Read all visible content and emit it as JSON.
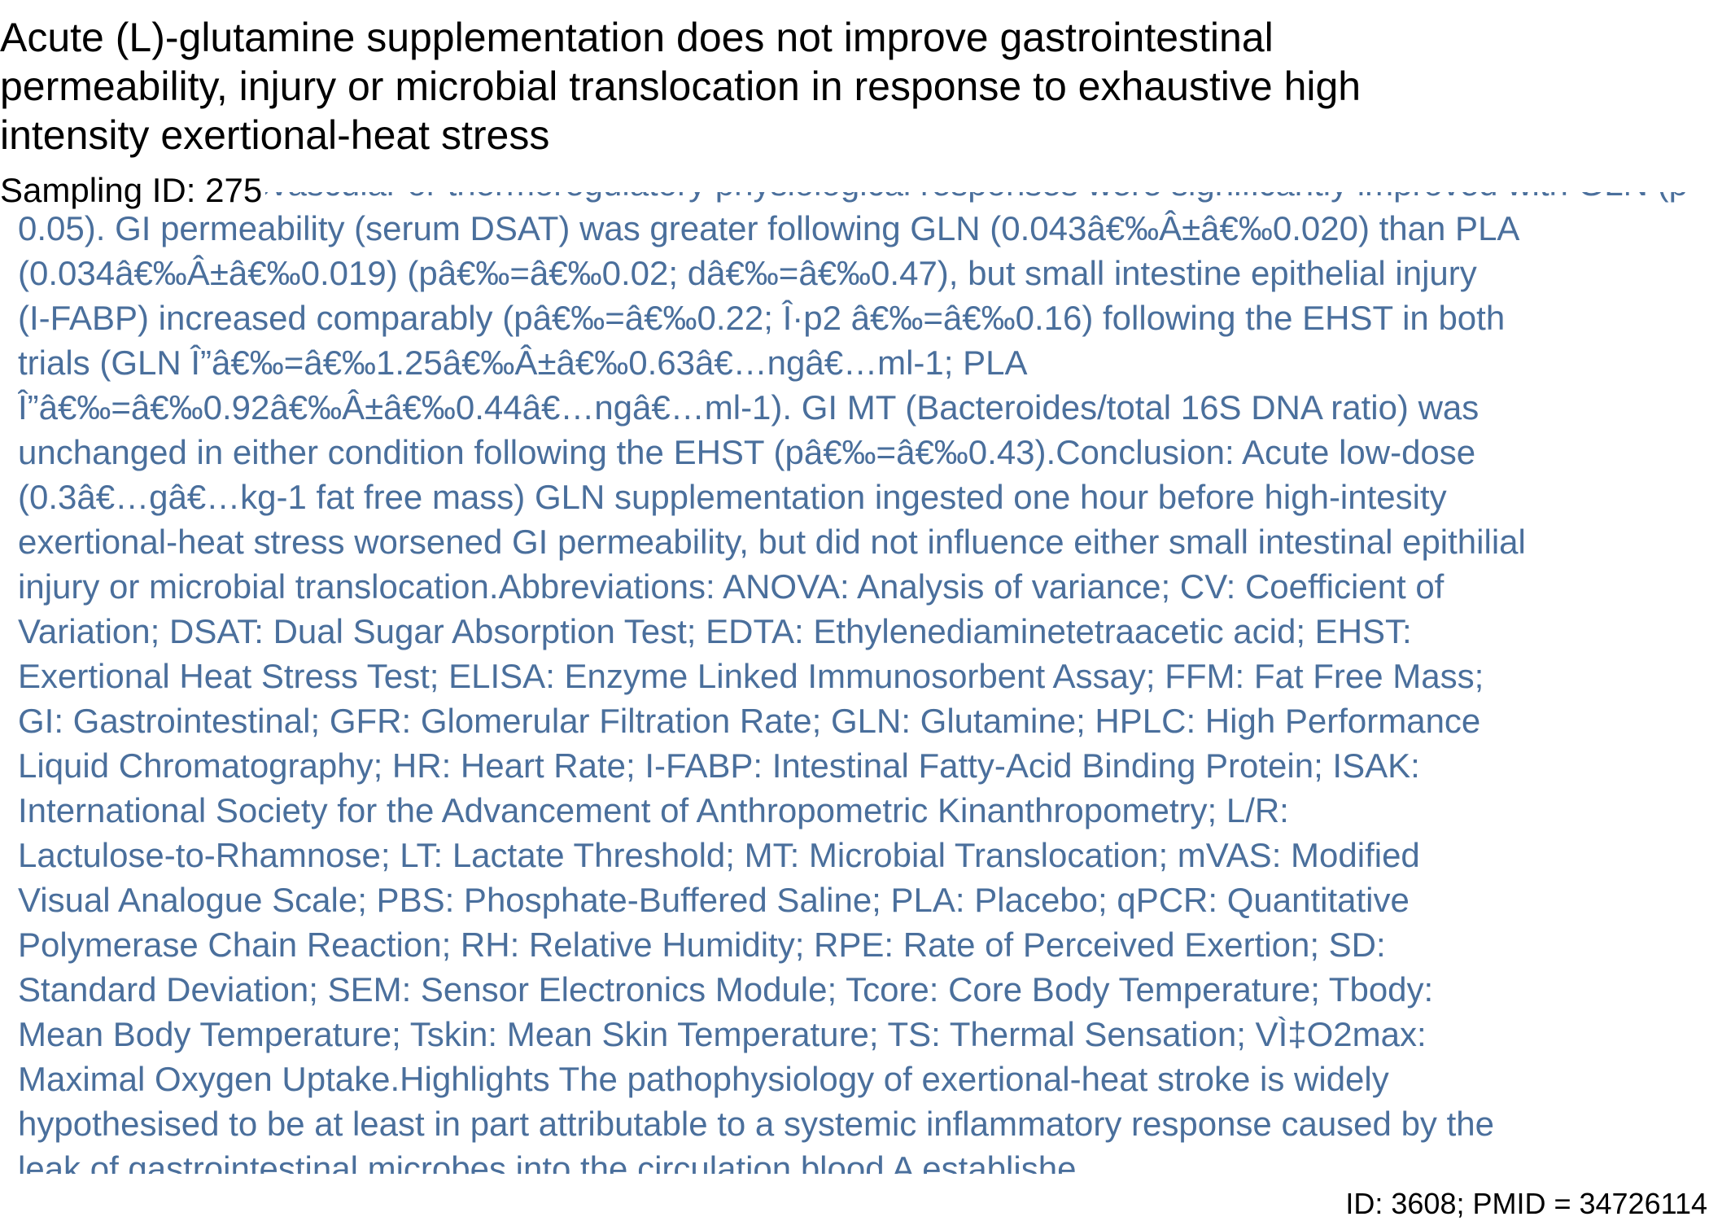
{
  "title_lines": [
    "Acute (L)-glutamine supplementation does not improve gastrointestinal",
    "permeability, injury or microbial translocation in response to exhaustive high",
    "intensity exertional-heat stress"
  ],
  "sampling_id": "Sampling ID: 275",
  "abstract_lines": [
    "hydration, cardiovascular or thermoregulatory physiological responses were significantly improved with GLN (p",
    "0.05). GI permeability (serum DSAT) was greater following GLN (0.043â€‰Â±â€‰0.020) than PLA",
    "(0.034â€‰Â±â€‰0.019) (pâ€‰=â€‰0.02; dâ€‰=â€‰0.47), but small intestine epithelial injury",
    "(I-FABP) increased comparably (pâ€‰=â€‰0.22; Î·p2 â€‰=â€‰0.16) following the EHST in both",
    "trials (GLN Î”â€‰=â€‰1.25â€‰Â±â€‰0.63â€…ngâ€…ml-1; PLA",
    "Î”â€‰=â€‰0.92â€‰Â±â€‰0.44â€…ngâ€…ml-1). GI MT (Bacteroides/total 16S DNA ratio) was",
    "unchanged in either condition following the EHST (pâ€‰=â€‰0.43).Conclusion: Acute low-dose",
    "(0.3â€…gâ€…kg-1 fat free mass) GLN supplementation ingested one hour before high-intesity",
    "exertional-heat stress worsened GI permeability, but did not influence either small intestinal epithilial",
    "injury or microbial translocation.Abbreviations: ANOVA: Analysis of variance; CV: Coefficient of",
    "Variation; DSAT: Dual Sugar Absorption Test; EDTA: Ethylenediaminetetraacetic acid; EHST:",
    "Exertional Heat Stress Test; ELISA: Enzyme Linked Immunosorbent Assay; FFM: Fat Free Mass;",
    "GI: Gastrointestinal; GFR: Glomerular Filtration Rate; GLN: Glutamine; HPLC: High Performance",
    "Liquid Chromatography; HR: Heart Rate; I-FABP: Intestinal Fatty-Acid Binding Protein; ISAK:",
    "International Society for the Advancement of Anthropometric Kinanthropometry; L/R:",
    "Lactulose-to-Rhamnose; LT: Lactate Threshold; MT: Microbial Translocation; mVAS: Modified",
    "Visual Analogue Scale; PBS: Phosphate-Buffered Saline; PLA: Placebo; qPCR: Quantitative",
    "Polymerase Chain Reaction; RH: Relative Humidity; RPE: Rate of Perceived Exertion; SD:",
    "Standard Deviation; SEM: Sensor Electronics Module; Tcore: Core Body Temperature; Tbody:",
    "Mean Body Temperature; Tskin: Mean Skin Temperature; TS: Thermal Sensation; VÌ‡O2max:",
    "Maximal Oxygen Uptake.Highlights The pathophysiology of exertional-heat stroke is widely",
    "hypothesised to be at least in part attributable to a systemic inflammatory response caused by the",
    "leak of gastrointestinal microbes into the circulation blood A establishe"
  ],
  "footer_id": "ID: 3608; PMID = 34726114"
}
